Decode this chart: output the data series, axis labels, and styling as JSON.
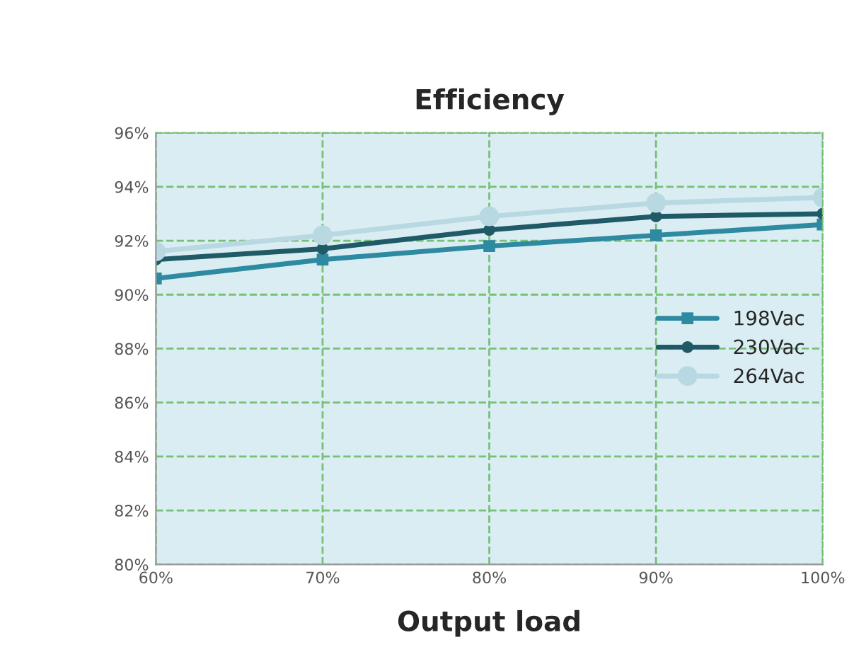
{
  "chart_data": {
    "type": "line",
    "title": "Efficiency",
    "xlabel": "Output load",
    "x": [
      60,
      70,
      80,
      90,
      100
    ],
    "series": [
      {
        "name": "198Vac",
        "color": "#2e8aa0",
        "marker": "square",
        "values": [
          90.6,
          91.3,
          91.8,
          92.2,
          92.6
        ]
      },
      {
        "name": "230Vac",
        "color": "#1f5a66",
        "marker": "circle",
        "values": [
          91.3,
          91.7,
          92.4,
          92.9,
          93.0
        ]
      },
      {
        "name": "264Vac",
        "color": "#b8d8e2",
        "marker": "circle",
        "values": [
          91.6,
          92.2,
          92.9,
          93.4,
          93.6
        ]
      }
    ],
    "xlim": [
      60,
      100
    ],
    "xticks": [
      {
        "value": 60,
        "label": "60%"
      },
      {
        "value": 70,
        "label": "70%"
      },
      {
        "value": 80,
        "label": "80%"
      },
      {
        "value": 90,
        "label": "90%"
      },
      {
        "value": 100,
        "label": "100%"
      }
    ],
    "ylim": [
      80,
      96
    ],
    "yticks": [
      {
        "value": 80,
        "label": "80%"
      },
      {
        "value": 82,
        "label": "82%"
      },
      {
        "value": 84,
        "label": "84%"
      },
      {
        "value": 86,
        "label": "86%"
      },
      {
        "value": 88,
        "label": "88%"
      },
      {
        "value": 90,
        "label": "90%"
      },
      {
        "value": 92,
        "label": "92%"
      },
      {
        "value": 94,
        "label": "94%"
      },
      {
        "value": 96,
        "label": "96%"
      }
    ],
    "grid": true,
    "legend": "right",
    "line_style": "solid"
  }
}
